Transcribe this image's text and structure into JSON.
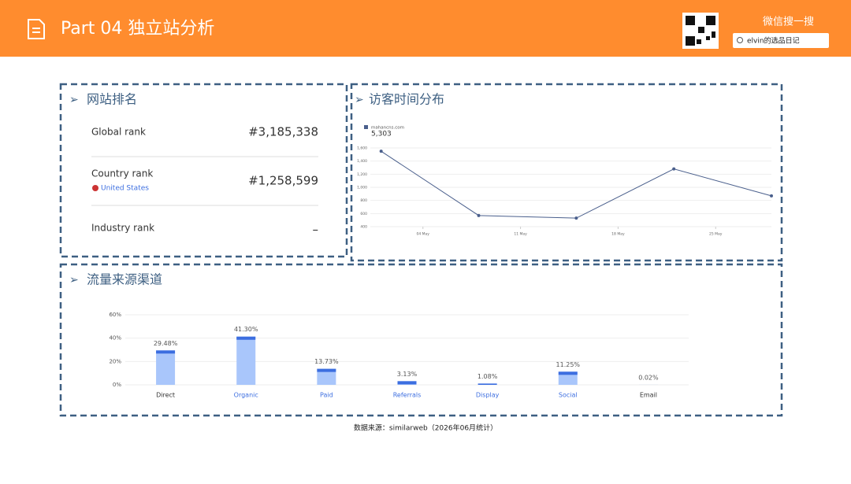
{
  "header": {
    "title": "Part 04 独立站分析",
    "wechat": "微信搜一搜",
    "search": "elvin的选品日记"
  },
  "ranks": {
    "title": "网站排名",
    "items": [
      {
        "label": "Global rank",
        "value": "#3,185,338"
      },
      {
        "label": "Country rank",
        "sub": "United States",
        "value": "#1,258,599"
      },
      {
        "label": "Industry rank",
        "value": "–"
      }
    ]
  },
  "panels": {
    "visits": "访客时间分布",
    "traffic": "流量来源渠道"
  },
  "chart_data": [
    {
      "type": "line",
      "series": [
        {
          "name": "mahancns.com",
          "color": "#4a5f8c",
          "values": [
            1550,
            570,
            530,
            1280,
            870
          ]
        }
      ],
      "total": "5,303",
      "x": [
        1,
        8,
        15,
        22,
        29
      ],
      "xlim": [
        0,
        29
      ],
      "xticks": [
        {
          "value": 4,
          "label": "04 May"
        },
        {
          "value": 11,
          "label": "11 May"
        },
        {
          "value": 18,
          "label": "18 May"
        },
        {
          "value": 25,
          "label": "25 May"
        }
      ],
      "ylim": [
        400,
        1600
      ],
      "yticks": [
        400,
        600,
        800,
        {
          "value": 1000,
          "label": "1,000"
        },
        {
          "value": 1200,
          "label": "1,200"
        },
        {
          "value": 1400,
          "label": "1,400"
        },
        {
          "value": 1600,
          "label": "1,600"
        }
      ],
      "grid": true
    },
    {
      "type": "bar",
      "categories": [
        "Direct",
        "Organic",
        "Paid",
        "Referrals",
        "Display",
        "Social",
        "Email"
      ],
      "values": [
        29.48,
        41.3,
        13.73,
        3.13,
        1.08,
        11.25,
        0.02
      ],
      "value_labels": [
        "29.48%",
        "41.30%",
        "13.73%",
        "3.13%",
        "1.08%",
        "11.25%",
        "0.02%"
      ],
      "color": "#a9c6fb",
      "cap_color": "#3c6ee0",
      "ylim": [
        0,
        60
      ],
      "yticks": [
        {
          "value": 0,
          "label": "0%"
        },
        {
          "value": 20,
          "label": "20%"
        },
        {
          "value": 40,
          "label": "40%"
        },
        {
          "value": 60,
          "label": "60%"
        }
      ],
      "grid": true
    }
  ],
  "footer": "数据来源：similarweb（2026年06月统计）"
}
